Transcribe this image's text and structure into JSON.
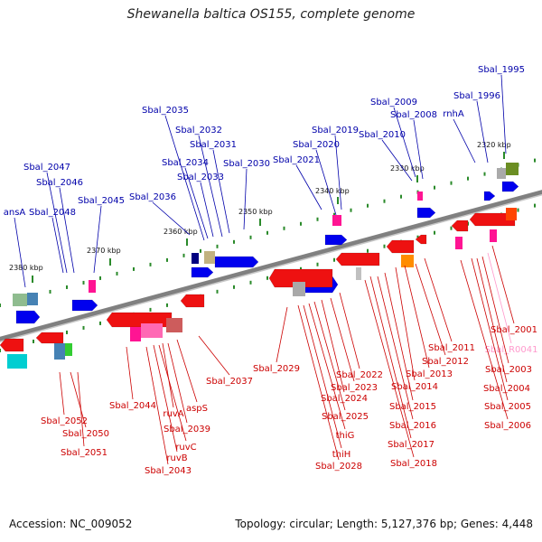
{
  "title": "Shewanella baltica OS155, complete genome",
  "footer": {
    "accession": "Accession: NC_009052",
    "summary": "Topology: circular; Length: 5,127,376 bp; Genes: 4,448"
  },
  "colors": {
    "forward_label": "#0000aa",
    "reverse_label": "#cc0000",
    "rna_label": "#ff99cc",
    "backbone": "#888888"
  },
  "ticks": [
    "2320 kbp",
    "2330 kbp",
    "2340 kbp",
    "2350 kbp",
    "2360 kbp",
    "2370 kbp",
    "2380 kbp"
  ],
  "top_labels": [
    "Sbal_1995",
    "Sbal_1996",
    "rnhA",
    "Sbal_2008",
    "Sbal_2009",
    "Sbal_2010",
    "Sbal_2019",
    "Sbal_2020",
    "Sbal_2021",
    "Sbal_2030",
    "Sbal_2031",
    "Sbal_2032",
    "Sbal_2033",
    "Sbal_2034",
    "Sbal_2035",
    "Sbal_2036",
    "Sbal_2045",
    "Sbal_2046",
    "Sbal_2047",
    "Sbal_2048",
    "ansA"
  ],
  "bottom_labels": [
    "Sbal_2001",
    "Sbal_R0041",
    "Sbal_2003",
    "Sbal_2004",
    "Sbal_2005",
    "Sbal_2006",
    "Sbal_2011",
    "Sbal_2012",
    "Sbal_2013",
    "Sbal_2014",
    "Sbal_2015",
    "Sbal_2016",
    "Sbal_2017",
    "Sbal_2018",
    "Sbal_2022",
    "Sbal_2023",
    "Sbal_2024",
    "Sbal_2025",
    "thiG",
    "thiH",
    "Sbal_2028",
    "Sbal_2029",
    "Sbal_2037",
    "aspS",
    "Sbal_2039",
    "ruvA",
    "ruvC",
    "ruvB",
    "Sbal_2043",
    "Sbal_2044",
    "Sbal_2052",
    "Sbal_2050",
    "Sbal_2051"
  ]
}
